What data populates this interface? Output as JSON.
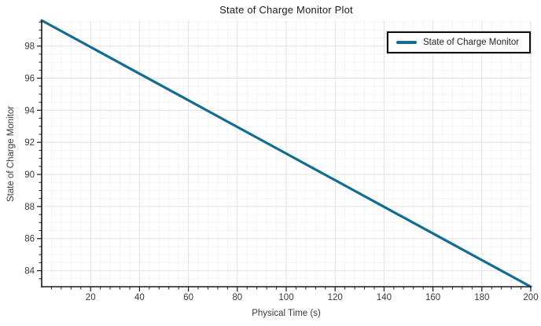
{
  "chart": {
    "title": "State of Charge Monitor Plot",
    "x_label": "Physical Time (s)",
    "y_label": "State of Charge Monitor",
    "legend": {
      "label": "State of Charge Monitor"
    }
  },
  "colors": {
    "line": "#136c92",
    "major_grid": "#e2e2e2",
    "minor_grid": "#f3f3f3",
    "axis": "#1a1a1a",
    "tick_text": "#3a3a3a"
  },
  "chart_data": {
    "type": "line",
    "title": "State of Charge Monitor Plot",
    "xlabel": "Physical Time (s)",
    "ylabel": "State of Charge Monitor",
    "xlim": [
      0,
      200
    ],
    "ylim": [
      83.0,
      99.6
    ],
    "x_major_ticks": [
      20,
      40,
      60,
      80,
      100,
      120,
      140,
      160,
      180,
      200
    ],
    "y_major_ticks": [
      84,
      86,
      88,
      90,
      92,
      94,
      96,
      98
    ],
    "x_minor_step": 4,
    "y_minor_step": 0.5,
    "grid": true,
    "legend_position": "top-right",
    "series": [
      {
        "name": "State of Charge Monitor",
        "points": [
          [
            0,
            99.6
          ],
          [
            20,
            97.94
          ],
          [
            40,
            96.28
          ],
          [
            60,
            94.62
          ],
          [
            80,
            92.96
          ],
          [
            100,
            91.3
          ],
          [
            120,
            89.64
          ],
          [
            140,
            87.98
          ],
          [
            160,
            86.32
          ],
          [
            180,
            84.66
          ],
          [
            200,
            83.0
          ]
        ]
      }
    ]
  }
}
